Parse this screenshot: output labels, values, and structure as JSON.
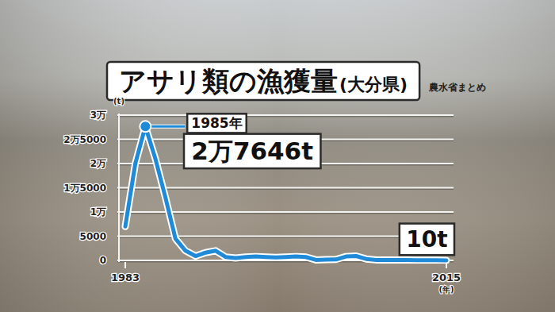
{
  "chart_data": {
    "type": "line",
    "title": "アサリ類の漁獲量",
    "subtitle": "(大分県)",
    "source": "農水省まとめ",
    "y_axis_label": "(t)",
    "x_axis_label": "(年)",
    "x": [
      1983,
      1984,
      1985,
      1986,
      1987,
      1988,
      1989,
      1990,
      1991,
      1992,
      1993,
      1994,
      1995,
      1996,
      1997,
      1998,
      1999,
      2000,
      2001,
      2002,
      2003,
      2004,
      2005,
      2006,
      2007,
      2008,
      2009,
      2010,
      2011,
      2012,
      2013,
      2014,
      2015
    ],
    "values": [
      7000,
      20000,
      27646,
      21000,
      13000,
      4500,
      2000,
      900,
      1600,
      2000,
      700,
      500,
      700,
      800,
      700,
      600,
      700,
      800,
      700,
      100,
      150,
      200,
      800,
      900,
      300,
      100,
      100,
      100,
      80,
      50,
      40,
      30,
      10
    ],
    "color": "#1f8ad8",
    "xlim": [
      1983,
      2015
    ],
    "xticks": [
      1983,
      2015
    ],
    "ylim": [
      0,
      30000
    ],
    "yticks": [
      0,
      5000,
      {
        "value": 10000,
        "label": "1万"
      },
      {
        "value": 15000,
        "label": "1万5000"
      },
      {
        "value": 20000,
        "label": "2万"
      },
      {
        "value": 25000,
        "label": "2万5000"
      },
      {
        "value": 30000,
        "label": "3万"
      }
    ],
    "grid": true,
    "annotations": [
      {
        "x": 1985,
        "label": "1985年"
      },
      {
        "x": 1985,
        "value": 27646,
        "label": "2万7646t"
      },
      {
        "x": 2015,
        "value": 10,
        "label": "10t"
      }
    ]
  }
}
